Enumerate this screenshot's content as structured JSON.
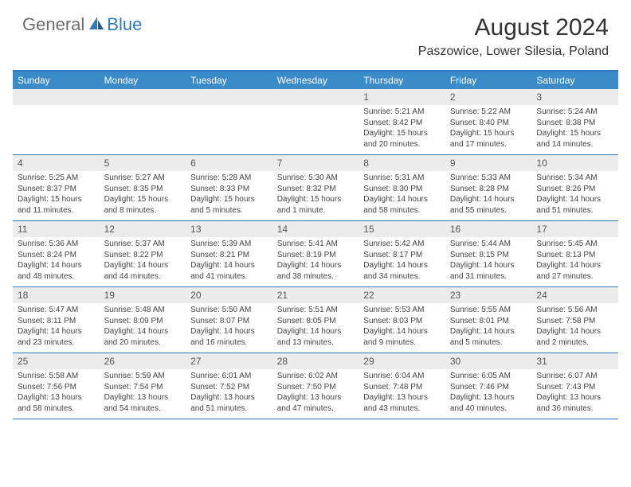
{
  "logo": {
    "text1": "General",
    "text2": "Blue"
  },
  "title": "August 2024",
  "location": "Paszowice, Lower Silesia, Poland",
  "colors": {
    "header_bar": "#3b8bc9",
    "accent": "#2f7abf",
    "daynum_bg": "#ececec",
    "text": "#333333",
    "logo_gray": "#6d6d6d"
  },
  "weekdays": [
    "Sunday",
    "Monday",
    "Tuesday",
    "Wednesday",
    "Thursday",
    "Friday",
    "Saturday"
  ],
  "weeks": [
    [
      {
        "n": "",
        "sr": "",
        "ss": "",
        "dl": ""
      },
      {
        "n": "",
        "sr": "",
        "ss": "",
        "dl": ""
      },
      {
        "n": "",
        "sr": "",
        "ss": "",
        "dl": ""
      },
      {
        "n": "",
        "sr": "",
        "ss": "",
        "dl": ""
      },
      {
        "n": "1",
        "sr": "Sunrise: 5:21 AM",
        "ss": "Sunset: 8:42 PM",
        "dl": "Daylight: 15 hours and 20 minutes."
      },
      {
        "n": "2",
        "sr": "Sunrise: 5:22 AM",
        "ss": "Sunset: 8:40 PM",
        "dl": "Daylight: 15 hours and 17 minutes."
      },
      {
        "n": "3",
        "sr": "Sunrise: 5:24 AM",
        "ss": "Sunset: 8:38 PM",
        "dl": "Daylight: 15 hours and 14 minutes."
      }
    ],
    [
      {
        "n": "4",
        "sr": "Sunrise: 5:25 AM",
        "ss": "Sunset: 8:37 PM",
        "dl": "Daylight: 15 hours and 11 minutes."
      },
      {
        "n": "5",
        "sr": "Sunrise: 5:27 AM",
        "ss": "Sunset: 8:35 PM",
        "dl": "Daylight: 15 hours and 8 minutes."
      },
      {
        "n": "6",
        "sr": "Sunrise: 5:28 AM",
        "ss": "Sunset: 8:33 PM",
        "dl": "Daylight: 15 hours and 5 minutes."
      },
      {
        "n": "7",
        "sr": "Sunrise: 5:30 AM",
        "ss": "Sunset: 8:32 PM",
        "dl": "Daylight: 15 hours and 1 minute."
      },
      {
        "n": "8",
        "sr": "Sunrise: 5:31 AM",
        "ss": "Sunset: 8:30 PM",
        "dl": "Daylight: 14 hours and 58 minutes."
      },
      {
        "n": "9",
        "sr": "Sunrise: 5:33 AM",
        "ss": "Sunset: 8:28 PM",
        "dl": "Daylight: 14 hours and 55 minutes."
      },
      {
        "n": "10",
        "sr": "Sunrise: 5:34 AM",
        "ss": "Sunset: 8:26 PM",
        "dl": "Daylight: 14 hours and 51 minutes."
      }
    ],
    [
      {
        "n": "11",
        "sr": "Sunrise: 5:36 AM",
        "ss": "Sunset: 8:24 PM",
        "dl": "Daylight: 14 hours and 48 minutes."
      },
      {
        "n": "12",
        "sr": "Sunrise: 5:37 AM",
        "ss": "Sunset: 8:22 PM",
        "dl": "Daylight: 14 hours and 44 minutes."
      },
      {
        "n": "13",
        "sr": "Sunrise: 5:39 AM",
        "ss": "Sunset: 8:21 PM",
        "dl": "Daylight: 14 hours and 41 minutes."
      },
      {
        "n": "14",
        "sr": "Sunrise: 5:41 AM",
        "ss": "Sunset: 8:19 PM",
        "dl": "Daylight: 14 hours and 38 minutes."
      },
      {
        "n": "15",
        "sr": "Sunrise: 5:42 AM",
        "ss": "Sunset: 8:17 PM",
        "dl": "Daylight: 14 hours and 34 minutes."
      },
      {
        "n": "16",
        "sr": "Sunrise: 5:44 AM",
        "ss": "Sunset: 8:15 PM",
        "dl": "Daylight: 14 hours and 31 minutes."
      },
      {
        "n": "17",
        "sr": "Sunrise: 5:45 AM",
        "ss": "Sunset: 8:13 PM",
        "dl": "Daylight: 14 hours and 27 minutes."
      }
    ],
    [
      {
        "n": "18",
        "sr": "Sunrise: 5:47 AM",
        "ss": "Sunset: 8:11 PM",
        "dl": "Daylight: 14 hours and 23 minutes."
      },
      {
        "n": "19",
        "sr": "Sunrise: 5:48 AM",
        "ss": "Sunset: 8:09 PM",
        "dl": "Daylight: 14 hours and 20 minutes."
      },
      {
        "n": "20",
        "sr": "Sunrise: 5:50 AM",
        "ss": "Sunset: 8:07 PM",
        "dl": "Daylight: 14 hours and 16 minutes."
      },
      {
        "n": "21",
        "sr": "Sunrise: 5:51 AM",
        "ss": "Sunset: 8:05 PM",
        "dl": "Daylight: 14 hours and 13 minutes."
      },
      {
        "n": "22",
        "sr": "Sunrise: 5:53 AM",
        "ss": "Sunset: 8:03 PM",
        "dl": "Daylight: 14 hours and 9 minutes."
      },
      {
        "n": "23",
        "sr": "Sunrise: 5:55 AM",
        "ss": "Sunset: 8:01 PM",
        "dl": "Daylight: 14 hours and 5 minutes."
      },
      {
        "n": "24",
        "sr": "Sunrise: 5:56 AM",
        "ss": "Sunset: 7:58 PM",
        "dl": "Daylight: 14 hours and 2 minutes."
      }
    ],
    [
      {
        "n": "25",
        "sr": "Sunrise: 5:58 AM",
        "ss": "Sunset: 7:56 PM",
        "dl": "Daylight: 13 hours and 58 minutes."
      },
      {
        "n": "26",
        "sr": "Sunrise: 5:59 AM",
        "ss": "Sunset: 7:54 PM",
        "dl": "Daylight: 13 hours and 54 minutes."
      },
      {
        "n": "27",
        "sr": "Sunrise: 6:01 AM",
        "ss": "Sunset: 7:52 PM",
        "dl": "Daylight: 13 hours and 51 minutes."
      },
      {
        "n": "28",
        "sr": "Sunrise: 6:02 AM",
        "ss": "Sunset: 7:50 PM",
        "dl": "Daylight: 13 hours and 47 minutes."
      },
      {
        "n": "29",
        "sr": "Sunrise: 6:04 AM",
        "ss": "Sunset: 7:48 PM",
        "dl": "Daylight: 13 hours and 43 minutes."
      },
      {
        "n": "30",
        "sr": "Sunrise: 6:05 AM",
        "ss": "Sunset: 7:46 PM",
        "dl": "Daylight: 13 hours and 40 minutes."
      },
      {
        "n": "31",
        "sr": "Sunrise: 6:07 AM",
        "ss": "Sunset: 7:43 PM",
        "dl": "Daylight: 13 hours and 36 minutes."
      }
    ]
  ]
}
